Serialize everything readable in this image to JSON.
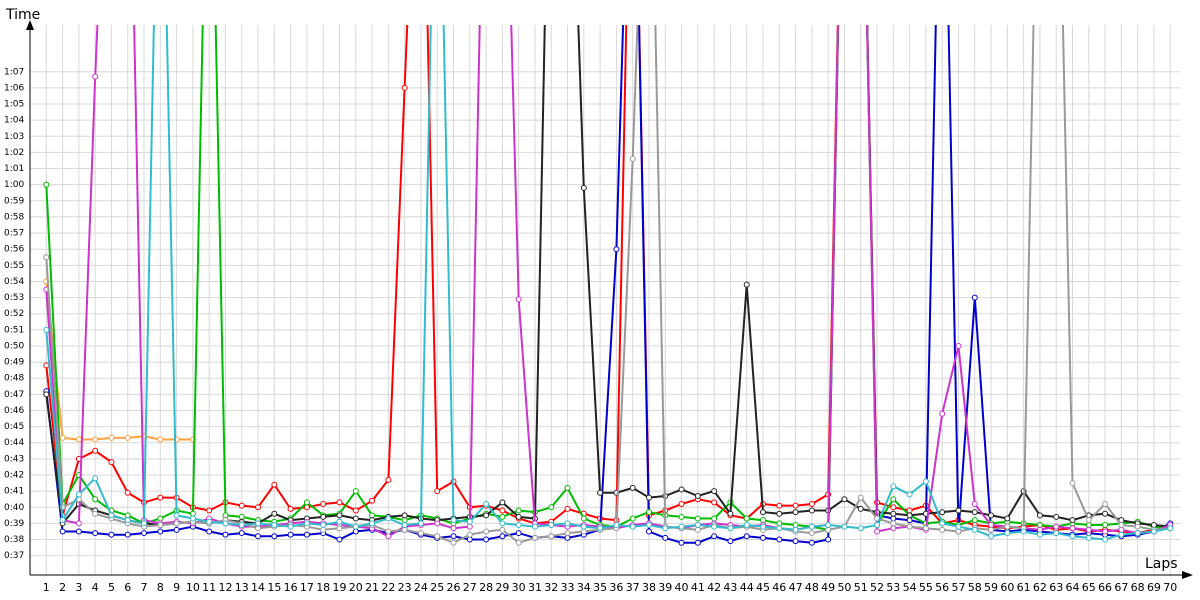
{
  "chart_data": {
    "type": "line",
    "y_label": "Time",
    "x_label": "Laps",
    "grid": true,
    "xlim": [
      0,
      70.6
    ],
    "ylim": [
      35.8,
      69.9
    ],
    "x": [
      1,
      2,
      3,
      4,
      5,
      6,
      7,
      8,
      9,
      10,
      11,
      12,
      13,
      14,
      15,
      16,
      17,
      18,
      19,
      20,
      21,
      22,
      23,
      24,
      25,
      26,
      27,
      28,
      29,
      30,
      31,
      32,
      33,
      34,
      35,
      36,
      37,
      38,
      39,
      40,
      41,
      42,
      43,
      44,
      45,
      46,
      47,
      48,
      49,
      50,
      51,
      52,
      53,
      54,
      55,
      56,
      57,
      58,
      59,
      60,
      61,
      62,
      63,
      64,
      65,
      66,
      67,
      68,
      69,
      70
    ],
    "xticks": [
      1,
      2,
      3,
      4,
      5,
      6,
      7,
      8,
      9,
      10,
      11,
      12,
      13,
      14,
      15,
      16,
      17,
      18,
      19,
      20,
      21,
      22,
      23,
      24,
      25,
      26,
      27,
      28,
      29,
      30,
      31,
      32,
      33,
      34,
      35,
      36,
      37,
      38,
      39,
      40,
      41,
      42,
      43,
      44,
      45,
      46,
      47,
      48,
      49,
      50,
      51,
      52,
      53,
      54,
      55,
      56,
      57,
      58,
      59,
      60,
      61,
      62,
      63,
      64,
      65,
      66,
      67,
      68,
      69,
      70
    ],
    "yticks": [
      {
        "value": 37,
        "label": "0:37"
      },
      {
        "value": 38,
        "label": "0:38"
      },
      {
        "value": 39,
        "label": "0:39"
      },
      {
        "value": 40,
        "label": "0:40"
      },
      {
        "value": 41,
        "label": "0:41"
      },
      {
        "value": 42,
        "label": "0:42"
      },
      {
        "value": 43,
        "label": "0:43"
      },
      {
        "value": 44,
        "label": "0:44"
      },
      {
        "value": 45,
        "label": "0:45"
      },
      {
        "value": 46,
        "label": "0:46"
      },
      {
        "value": 47,
        "label": "0:47"
      },
      {
        "value": 48,
        "label": "0:48"
      },
      {
        "value": 49,
        "label": "0:49"
      },
      {
        "value": 50,
        "label": "0:50"
      },
      {
        "value": 51,
        "label": "0:51"
      },
      {
        "value": 52,
        "label": "0:52"
      },
      {
        "value": 53,
        "label": "0:53"
      },
      {
        "value": 54,
        "label": "0:54"
      },
      {
        "value": 55,
        "label": "0:55"
      },
      {
        "value": 56,
        "label": "0:56"
      },
      {
        "value": 57,
        "label": "0:57"
      },
      {
        "value": 58,
        "label": "0:58"
      },
      {
        "value": 59,
        "label": "0:59"
      },
      {
        "value": 60,
        "label": "1:00"
      },
      {
        "value": 61,
        "label": "1:01"
      },
      {
        "value": 62,
        "label": "1:02"
      },
      {
        "value": 63,
        "label": "1:03"
      },
      {
        "value": 64,
        "label": "1:04"
      },
      {
        "value": 65,
        "label": "1:05"
      },
      {
        "value": 66,
        "label": "1:06"
      },
      {
        "value": 67,
        "label": "1:07"
      }
    ],
    "series": [
      {
        "color": "#ff0000",
        "values": [
          48.8,
          39.5,
          43,
          43.5,
          42.8,
          40.9,
          40.3,
          40.6,
          40.6,
          40.0,
          39.8,
          40.3,
          40.1,
          40.0,
          41.4,
          39.9,
          40.0,
          40.2,
          40.3,
          39.8,
          40.4,
          41.7,
          66,
          90,
          41.0,
          41.6,
          40.0,
          40.1,
          39.8,
          39.3,
          39.0,
          39.1,
          39.9,
          39.6,
          39.3,
          39.2,
          90,
          39.5,
          39.8,
          40.2,
          40.5,
          40.3,
          39.5,
          39.3,
          40.2,
          40.1,
          40.1,
          40.2,
          40.8,
          90,
          90,
          40.3,
          40.0,
          39.8,
          40.1,
          39.0,
          39.2,
          38.9,
          38.8,
          38.7,
          38.8,
          38.9,
          38.6,
          38.7,
          38.5,
          38.6,
          38.5,
          38.4,
          38.6,
          38.7
        ]
      },
      {
        "color": "#ffa040",
        "values": [
          54,
          44.3,
          44.2,
          44.2,
          44.3,
          44.3,
          44.4,
          44.2,
          44.2,
          44.2,
          null,
          null,
          null,
          null,
          null,
          null,
          null,
          null,
          null,
          null,
          null,
          null,
          null,
          null,
          null,
          null,
          null,
          null,
          null,
          null,
          null,
          null,
          null,
          null,
          null,
          null,
          null,
          null,
          null,
          null,
          null,
          null,
          null,
          null,
          null,
          null,
          null,
          null,
          null,
          null,
          null,
          null,
          null,
          null,
          null,
          null,
          null,
          null,
          null,
          null,
          null,
          null,
          null,
          null,
          null,
          null,
          null,
          null,
          null,
          null
        ]
      },
      {
        "color": "#0000cc",
        "values": [
          47.2,
          38.5,
          38.5,
          38.4,
          38.3,
          38.3,
          38.4,
          38.5,
          38.6,
          38.8,
          38.5,
          38.3,
          38.4,
          38.2,
          38.2,
          38.3,
          38.3,
          38.4,
          38.0,
          38.5,
          38.6,
          38.4,
          38.6,
          38.3,
          38.1,
          38.2,
          38.0,
          38.0,
          38.2,
          38.4,
          38.1,
          38.2,
          38.1,
          38.3,
          38.6,
          56,
          90,
          38.5,
          38.1,
          37.8,
          37.8,
          38.2,
          37.9,
          38.2,
          38.1,
          38.0,
          37.9,
          37.8,
          38.0,
          90,
          90,
          39.5,
          39.3,
          39.2,
          39.0,
          90,
          38.5,
          53,
          38.6,
          38.5,
          38.6,
          38.5,
          38.4,
          38.3,
          38.4,
          38.3,
          38.2,
          38.3,
          38.5,
          39.0
        ]
      },
      {
        "color": "#00bb00",
        "values": [
          60,
          40.2,
          42.0,
          40.5,
          39.8,
          39.5,
          39.0,
          39.3,
          39.8,
          39.6,
          90,
          39.5,
          39.4,
          39.2,
          39.1,
          39.3,
          40.3,
          39.5,
          39.6,
          41.0,
          39.5,
          39.4,
          39.2,
          39.5,
          39.3,
          39.0,
          39.3,
          39.6,
          39.4,
          39.8,
          39.7,
          40.0,
          41.2,
          39.3,
          38.9,
          38.8,
          39.3,
          39.7,
          39.5,
          39.4,
          39.3,
          39.3,
          40.3,
          39.3,
          39.2,
          39.0,
          38.9,
          38.8,
          38.6,
          90,
          90,
          38.9,
          40.5,
          39.5,
          39.0,
          39.1,
          38.9,
          39.2,
          39.0,
          39.1,
          39.0,
          38.9,
          38.8,
          39.0,
          38.9,
          38.9,
          39.0,
          39.1,
          38.8,
          38.7
        ]
      },
      {
        "color": "#222222",
        "values": [
          47,
          39.0,
          40.2,
          39.8,
          39.5,
          39.2,
          39.0,
          38.9,
          39.0,
          39.1,
          39.0,
          39.2,
          39.1,
          39.0,
          39.6,
          39.2,
          39.3,
          39.4,
          39.5,
          39.3,
          39.2,
          39.4,
          39.5,
          39.3,
          39.2,
          39.3,
          39.4,
          39.5,
          40.3,
          39.4,
          39.3,
          90,
          90,
          59.8,
          40.9,
          40.9,
          41.2,
          40.6,
          40.7,
          41.1,
          40.7,
          41.0,
          39.6,
          53.8,
          39.7,
          39.6,
          39.7,
          39.8,
          39.8,
          40.5,
          39.9,
          39.7,
          39.6,
          39.5,
          39.6,
          39.7,
          39.8,
          39.7,
          39.5,
          39.3,
          41.0,
          39.5,
          39.4,
          39.2,
          39.5,
          39.6,
          39.2,
          39.0,
          38.9,
          38.8
        ]
      },
      {
        "color": "#cc33cc",
        "values": [
          53.5,
          39.2,
          39.0,
          66.7,
          90,
          90,
          39.2,
          39.0,
          39.1,
          39.0,
          39.3,
          39.0,
          38.8,
          38.8,
          38.9,
          39.0,
          39.1,
          39.0,
          38.9,
          38.8,
          38.7,
          38.2,
          38.8,
          38.9,
          39.0,
          38.7,
          38.8,
          90,
          90,
          52.9,
          39.0,
          38.9,
          38.8,
          38.9,
          38.8,
          38.7,
          38.9,
          39.0,
          38.8,
          38.7,
          38.9,
          39.0,
          38.9,
          38.8,
          38.9,
          38.7,
          38.6,
          38.8,
          38.9,
          90,
          90,
          38.5,
          38.7,
          38.8,
          38.6,
          45.8,
          50,
          40.2,
          38.9,
          38.8,
          38.7,
          38.6,
          38.8,
          38.7,
          38.6,
          38.5,
          38.6,
          38.4,
          38.5,
          38.9
        ]
      },
      {
        "color": "#999999",
        "values": [
          55.5,
          40.0,
          40.5,
          39.6,
          39.3,
          39.0,
          38.8,
          38.9,
          39.0,
          39.1,
          39.0,
          39.2,
          39.0,
          38.7,
          38.8,
          38.9,
          38.8,
          38.6,
          38.7,
          38.8,
          38.9,
          38.5,
          38.6,
          38.4,
          38.2,
          37.8,
          38.3,
          38.5,
          38.6,
          37.8,
          38.1,
          38.2,
          38.4,
          38.5,
          38.6,
          38.7,
          61.6,
          90,
          38.8,
          38.7,
          38.6,
          38.9,
          38.7,
          38.8,
          38.6,
          38.7,
          38.5,
          38.4,
          38.6,
          38.8,
          40.6,
          39.3,
          39.0,
          38.8,
          38.7,
          38.6,
          38.5,
          38.7,
          38.6,
          38.8,
          38.7,
          90,
          90,
          41.5,
          39.2,
          40.2,
          38.9,
          38.8,
          38.6,
          38.7
        ]
      },
      {
        "color": "#33bbcc",
        "values": [
          51,
          39.2,
          40.8,
          41.8,
          39.5,
          39.2,
          39.0,
          90,
          39.5,
          39.3,
          39.1,
          39.0,
          38.9,
          39.0,
          38.9,
          38.8,
          39.0,
          38.9,
          39.1,
          38.8,
          39.0,
          39.3,
          38.9,
          39.0,
          90,
          39.2,
          39.1,
          40.2,
          39.0,
          38.9,
          38.8,
          38.9,
          39.0,
          38.8,
          38.7,
          38.9,
          38.8,
          38.9,
          38.7,
          38.8,
          38.9,
          38.8,
          38.7,
          38.9,
          38.8,
          38.7,
          38.6,
          38.8,
          38.9,
          38.8,
          38.7,
          38.9,
          41.3,
          40.8,
          41.6,
          39.0,
          38.8,
          38.6,
          38.2,
          38.4,
          38.5,
          38.3,
          38.4,
          38.2,
          38.1,
          38.0,
          38.3,
          38.4,
          38.5,
          38.7
        ]
      }
    ]
  }
}
